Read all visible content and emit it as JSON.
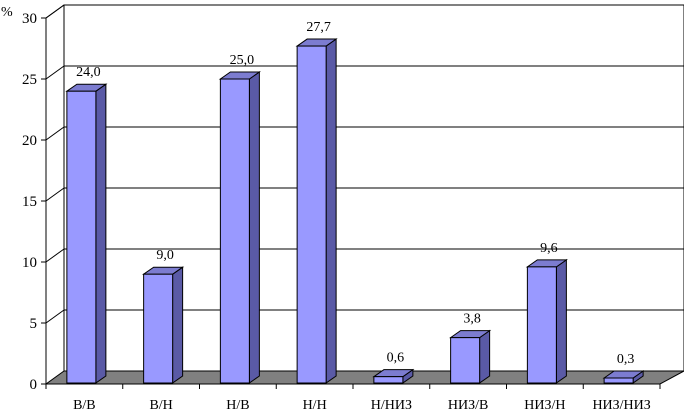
{
  "chart_data": {
    "type": "bar",
    "ylabel": "%",
    "categories": [
      "В/В",
      "В/Н",
      "Н/В",
      "Н/Н",
      "Н/НИЗ",
      "НИЗ/В",
      "НИЗ/Н",
      "НИЗ/НИЗ"
    ],
    "values": [
      24.0,
      9.0,
      25.0,
      27.7,
      0.6,
      3.8,
      9.6,
      0.3
    ],
    "value_labels": [
      "24,0",
      "9,0",
      "25,0",
      "27,7",
      "0,6",
      "3,8",
      "9,6",
      "0,3"
    ],
    "ylim": [
      0,
      30
    ],
    "yticks": [
      "0",
      "5",
      "10",
      "15",
      "20",
      "25",
      "30"
    ],
    "grid": true,
    "style": "3d",
    "colors": {
      "bar_front": "#9999ff",
      "bar_side": "#5a5aa6",
      "bar_top": "#7c7cd0",
      "floor": "#808080",
      "grid": "#000000"
    }
  }
}
